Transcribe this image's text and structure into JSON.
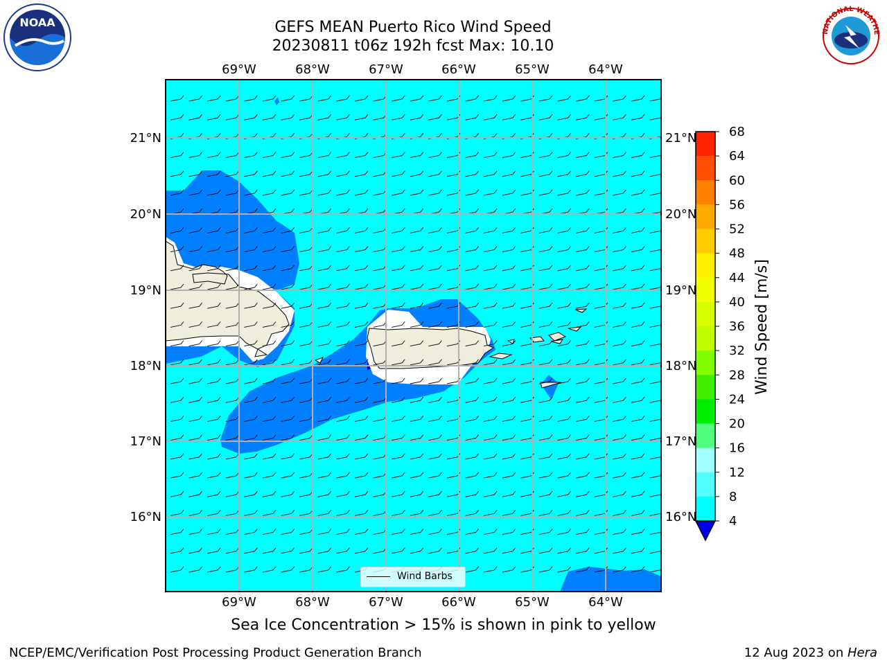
{
  "header": {
    "title_line1": "GEFS MEAN Puerto Rico Wind Speed",
    "title_line2": "20230811 t06z 192h fcst   Max: 10.10"
  },
  "logos": {
    "noaa_text": "NOAA",
    "nws_text": "NATIONAL WEATHER SERVICE"
  },
  "map": {
    "lon_labels": [
      "69°W",
      "68°W",
      "67°W",
      "66°W",
      "65°W",
      "64°W"
    ],
    "lat_labels": [
      "21°N",
      "20°N",
      "19°N",
      "18°N",
      "17°N",
      "16°N"
    ],
    "legend_label": "Wind Barbs"
  },
  "colorbar": {
    "label": "Wind Speed [m/s]",
    "ticks": [
      "68",
      "64",
      "60",
      "56",
      "52",
      "48",
      "44",
      "40",
      "36",
      "32",
      "28",
      "24",
      "20",
      "16",
      "12",
      "8",
      "4"
    ],
    "colors": [
      "#ff0000",
      "#ff2400",
      "#ff5000",
      "#ff8000",
      "#ffaa00",
      "#ffcc00",
      "#fff000",
      "#f0ff00",
      "#d8ff00",
      "#c0ff00",
      "#80ff00",
      "#40ee00",
      "#00ee00",
      "#50ff80",
      "#a0ffff",
      "#50ffff",
      "#00ffff",
      "#0080ff"
    ],
    "under_color": "#0000ee"
  },
  "caption": "Sea Ice Concentration > 15% is shown in pink to yellow",
  "footer": {
    "left": "NCEP/EMC/Verification Post Processing Product Generation Branch",
    "right_prefix": "12 Aug 2023 on ",
    "right_italic": "Hera"
  }
}
